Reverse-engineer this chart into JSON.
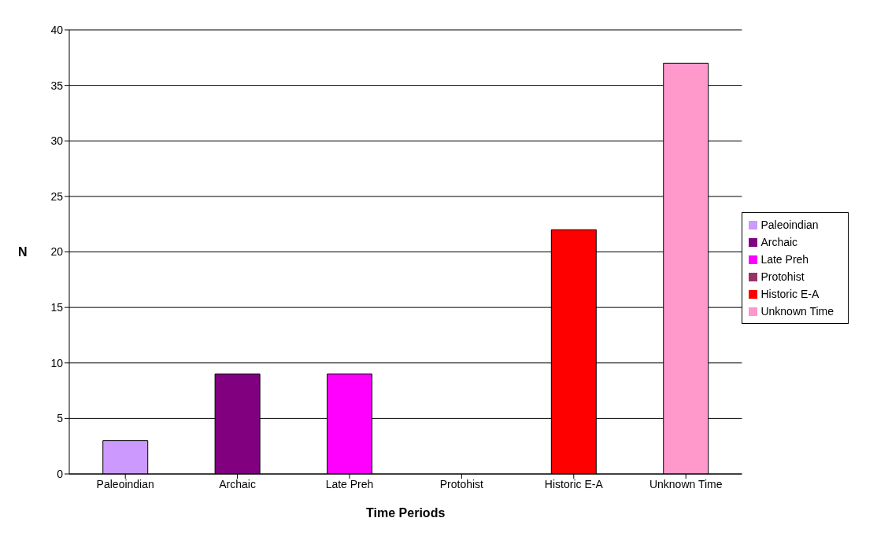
{
  "chart_data": {
    "type": "bar",
    "xlabel": "Time Periods",
    "ylabel": "N",
    "categories": [
      "Paleoindian",
      "Archaic",
      "Late Preh",
      "Protohist",
      "Historic E-A",
      "Unknown Time"
    ],
    "series": [
      {
        "name": "Paleoindian",
        "color": "#cc99ff",
        "values": [
          3,
          null,
          null,
          null,
          null,
          null
        ]
      },
      {
        "name": "Archaic",
        "color": "#800080",
        "values": [
          null,
          9,
          null,
          null,
          null,
          null
        ]
      },
      {
        "name": "Late Preh",
        "color": "#ff00ff",
        "values": [
          null,
          null,
          9,
          null,
          null,
          null
        ]
      },
      {
        "name": "Protohist",
        "color": "#993366",
        "values": [
          null,
          null,
          null,
          0,
          null,
          null
        ]
      },
      {
        "name": "Historic E-A",
        "color": "#ff0000",
        "values": [
          null,
          null,
          null,
          null,
          22,
          null
        ]
      },
      {
        "name": "Unknown Time",
        "color": "#ff99cc",
        "values": [
          null,
          null,
          null,
          null,
          null,
          37
        ]
      }
    ],
    "stacked": true,
    "ylim": [
      0,
      40
    ],
    "yticks": [
      0,
      5,
      10,
      15,
      20,
      25,
      30,
      35,
      40
    ],
    "grid": "y",
    "legend": "right"
  }
}
